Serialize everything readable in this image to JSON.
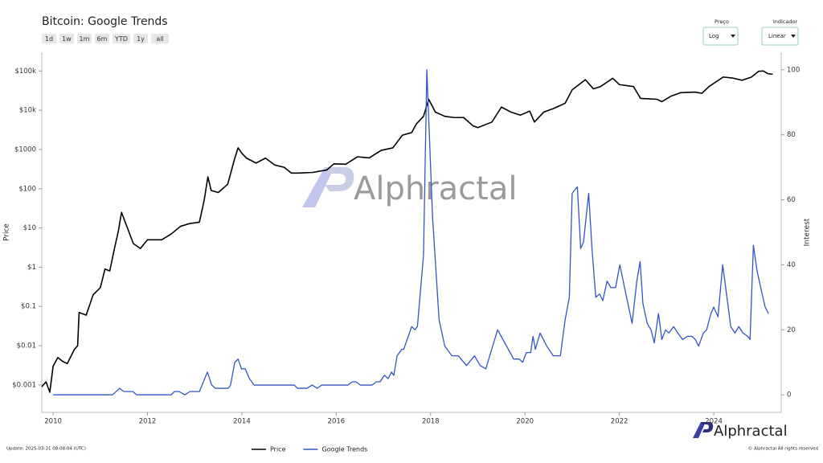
{
  "chart_data": {
    "type": "line",
    "title": "Bitcoin: Google Trends",
    "y_label": "Price",
    "y2_label": "Interest",
    "y_scale": "log",
    "grid": false,
    "xlim": [
      2009.76,
      2025.43
    ],
    "xticks": [
      2010,
      2012,
      2014,
      2016,
      2018,
      2020,
      2022,
      2024
    ],
    "ylim": [
      0.0002,
      300000
    ],
    "yticks": [
      {
        "value": 0.001,
        "label": "$0.001"
      },
      {
        "value": 0.01,
        "label": "$0.01"
      },
      {
        "value": 0.1,
        "label": "$0.1"
      },
      {
        "value": 1,
        "label": "$1"
      },
      {
        "value": 10,
        "label": "$10"
      },
      {
        "value": 100,
        "label": "$100"
      },
      {
        "value": 1000,
        "label": "$1000"
      },
      {
        "value": 10000,
        "label": "$10k"
      },
      {
        "value": 100000,
        "label": "$100k"
      }
    ],
    "y2lim": [
      -5.4,
      105.4
    ],
    "y2ticks": [
      0,
      20,
      40,
      60,
      80,
      100
    ],
    "legend": "bottom",
    "series": [
      {
        "name": "Price",
        "color": "#000000",
        "axis": "y",
        "x": [
          2009.76,
          2009.85,
          2009.93,
          2010.0,
          2010.1,
          2010.2,
          2010.3,
          2010.45,
          2010.52,
          2010.55,
          2010.7,
          2010.85,
          2011.0,
          2011.1,
          2011.2,
          2011.3,
          2011.38,
          2011.45,
          2011.55,
          2011.7,
          2011.85,
          2012.0,
          2012.3,
          2012.5,
          2012.7,
          2012.9,
          2013.1,
          2013.2,
          2013.28,
          2013.35,
          2013.5,
          2013.7,
          2013.85,
          2013.92,
          2014.0,
          2014.1,
          2014.3,
          2014.5,
          2014.7,
          2014.9,
          2015.05,
          2015.2,
          2015.5,
          2015.8,
          2015.95,
          2016.2,
          2016.45,
          2016.7,
          2016.95,
          2017.2,
          2017.4,
          2017.6,
          2017.7,
          2017.85,
          2017.96,
          2018.1,
          2018.3,
          2018.5,
          2018.7,
          2018.9,
          2019.0,
          2019.3,
          2019.5,
          2019.7,
          2019.9,
          2020.1,
          2020.2,
          2020.4,
          2020.6,
          2020.85,
          2021.0,
          2021.28,
          2021.45,
          2021.6,
          2021.86,
          2022.0,
          2022.3,
          2022.45,
          2022.8,
          2022.9,
          2023.1,
          2023.3,
          2023.6,
          2023.75,
          2023.9,
          2024.2,
          2024.4,
          2024.6,
          2024.8,
          2024.95,
          2025.05,
          2025.15,
          2025.25
        ],
        "values": [
          0.0009,
          0.0012,
          0.00065,
          0.003,
          0.005,
          0.004,
          0.0035,
          0.008,
          0.01,
          0.07,
          0.06,
          0.2,
          0.3,
          0.9,
          0.8,
          3,
          8,
          25,
          12,
          4,
          3,
          5,
          5,
          7,
          11,
          13,
          14,
          50,
          200,
          90,
          80,
          130,
          600,
          1100,
          800,
          600,
          450,
          600,
          400,
          350,
          250,
          250,
          260,
          300,
          430,
          420,
          650,
          610,
          950,
          1100,
          2300,
          2700,
          4500,
          7000,
          19000,
          9000,
          7000,
          6500,
          6500,
          4000,
          3600,
          5000,
          12000,
          9000,
          7500,
          9500,
          5000,
          9000,
          11000,
          15000,
          33000,
          60000,
          35000,
          40000,
          65000,
          45000,
          40000,
          20000,
          19000,
          16500,
          23000,
          28000,
          29000,
          27000,
          40000,
          70000,
          66000,
          58000,
          70000,
          98000,
          100000,
          85000,
          83000
        ]
      },
      {
        "name": "Google Trends",
        "color": "#3355c4",
        "axis": "y2",
        "x": [
          2010.0,
          2011.26,
          2011.41,
          2011.5,
          2011.69,
          2011.77,
          2012.5,
          2012.57,
          2012.67,
          2012.79,
          2012.9,
          2013.1,
          2013.27,
          2013.36,
          2013.44,
          2013.71,
          2013.76,
          2013.85,
          2013.92,
          2013.99,
          2014.07,
          2014.16,
          2014.26,
          2015.11,
          2015.18,
          2015.38,
          2015.49,
          2015.6,
          2015.69,
          2016.25,
          2016.34,
          2016.42,
          2016.51,
          2016.76,
          2016.85,
          2016.93,
          2017.02,
          2017.1,
          2017.17,
          2017.22,
          2017.29,
          2017.39,
          2017.43,
          2017.6,
          2017.67,
          2017.72,
          2017.85,
          2017.92,
          2018.04,
          2018.18,
          2018.3,
          2018.45,
          2018.59,
          2018.76,
          2018.93,
          2019.05,
          2019.17,
          2019.42,
          2019.61,
          2019.76,
          2019.88,
          2019.95,
          2020.03,
          2020.12,
          2020.17,
          2020.22,
          2020.32,
          2020.46,
          2020.6,
          2020.75,
          2020.85,
          2020.94,
          2021.0,
          2021.11,
          2021.18,
          2021.24,
          2021.35,
          2021.42,
          2021.5,
          2021.58,
          2021.65,
          2021.74,
          2021.82,
          2021.92,
          2022.01,
          2022.11,
          2022.27,
          2022.37,
          2022.44,
          2022.5,
          2022.59,
          2022.67,
          2022.74,
          2022.83,
          2022.9,
          2022.98,
          2023.05,
          2023.15,
          2023.24,
          2023.34,
          2023.44,
          2023.54,
          2023.61,
          2023.68,
          2023.78,
          2023.85,
          2023.94,
          2024.0,
          2024.09,
          2024.19,
          2024.28,
          2024.36,
          2024.45,
          2024.53,
          2024.62,
          2024.72,
          2024.77,
          2024.84,
          2024.92,
          2025.01,
          2025.09,
          2025.16
        ],
        "values": [
          0,
          0,
          2,
          1,
          1,
          0,
          0,
          1,
          1,
          0,
          1,
          1,
          7,
          3,
          2,
          2,
          3,
          10,
          11,
          8,
          8,
          5,
          3,
          3,
          2,
          2,
          3,
          2,
          3,
          3,
          4,
          4,
          3,
          3,
          4,
          4,
          6,
          5,
          7,
          6,
          12,
          14,
          14,
          21,
          20,
          21,
          43,
          100,
          55,
          23,
          15,
          12,
          12,
          9,
          12,
          9,
          8,
          20,
          15,
          11,
          11,
          10,
          13,
          13,
          18,
          14,
          19,
          15,
          12,
          12,
          23,
          30,
          62,
          64,
          45,
          47,
          62,
          45,
          30,
          31,
          29,
          35,
          33,
          33,
          40,
          33,
          22,
          35,
          41,
          28,
          22,
          20,
          16,
          25,
          17,
          20,
          19,
          21,
          19,
          17,
          18,
          18,
          17,
          15,
          19,
          20,
          25,
          27,
          24,
          40,
          30,
          21,
          19,
          21,
          19,
          18,
          17,
          46,
          38,
          32,
          27,
          25
        ]
      }
    ]
  },
  "controls": {
    "ranges": [
      "1d",
      "1w",
      "1m",
      "6m",
      "YTD",
      "1y",
      "all"
    ],
    "price_scale": {
      "label": "Preço",
      "value": "Log"
    },
    "indicator": {
      "label": "Indicador",
      "value": "Linear"
    }
  },
  "watermark": "Alphractal",
  "logo": "Alphractal",
  "update": "Update: 2025-03-31 08:08:04 (UTC)",
  "copyright": "© Alphractal All rights reserved"
}
